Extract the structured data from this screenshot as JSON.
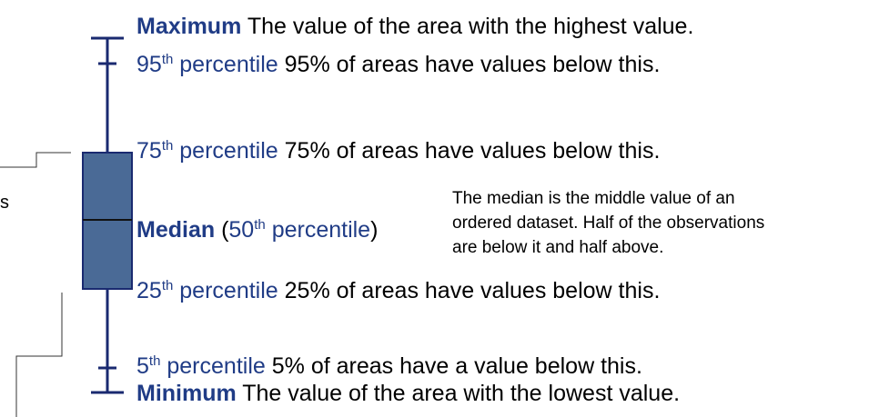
{
  "edge": {
    "fragment": "s"
  },
  "maximum": {
    "term": "Maximum",
    "desc": "The value of the area with the highest value."
  },
  "p95": {
    "num": "95",
    "sup": "th",
    "word": "percentile",
    "desc": "95% of areas have values below this."
  },
  "p75": {
    "num": "75",
    "sup": "th",
    "word": "percentile",
    "desc": "75% of areas have values below this."
  },
  "median": {
    "term": "Median",
    "open": "(",
    "num": "50",
    "sup": "th",
    "word": "percentile",
    "close": ")",
    "note": [
      "The median is the middle value of an",
      "ordered dataset. Half of the observations",
      "are below it and half above."
    ]
  },
  "p25": {
    "num": "25",
    "sup": "th",
    "word": "percentile",
    "desc": "25% of areas have values below this."
  },
  "p5": {
    "num": "5",
    "sup": "th",
    "word": "percentile",
    "desc": "5% of areas have a value below this."
  },
  "minimum": {
    "term": "Minimum",
    "desc": "The value of the area with the lowest value."
  }
}
